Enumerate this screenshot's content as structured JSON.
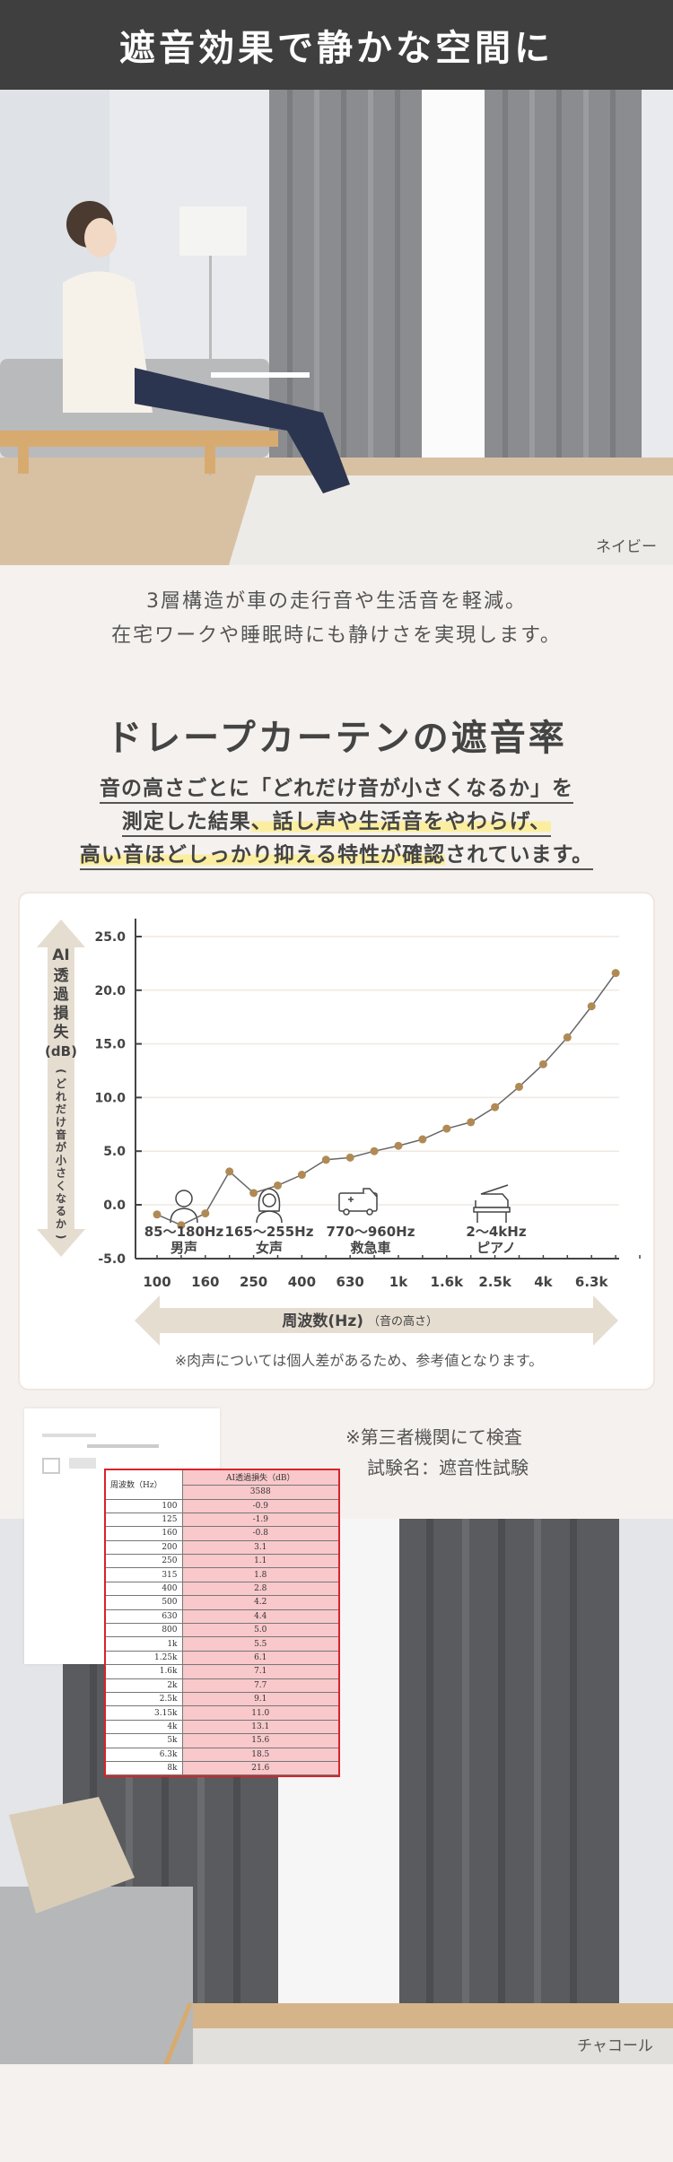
{
  "header": {
    "title": "遮音効果で静かな空間に"
  },
  "photo_top": {
    "label": "ネイビー"
  },
  "intro": {
    "line1": "3層構造が車の走行音や生活音を軽減。",
    "line2": "在宅ワークや睡眠時にも静けさを実現します。"
  },
  "section": {
    "title": "ドレープカーテンの遮音率",
    "sub1": "音の高さごとに「どれだけ音が小さくなるか」を",
    "sub2a": "測定した結果",
    "sub2b": "、話し声や生活音をやわらげ、",
    "sub3a": "高い音ほどしっかり抑える特性が確認",
    "sub3b": "されています。"
  },
  "chart_data": {
    "type": "line",
    "title": "ドレープカーテンの遮音率",
    "ylabel": "AI透過損失(dB)（どれだけ音が小さくなるか）",
    "ylabel_main": "AI透過損失(dB)",
    "ylabel_sub": "（どれだけ音が小さくなるか）",
    "xlabel": "周波数(Hz)",
    "xlabel_sub": "（音の高さ）",
    "ylim": [
      -5,
      25
    ],
    "yticks": [
      "25.0",
      "20.0",
      "15.0",
      "10.0",
      "5.0",
      "0.0",
      "-5.0"
    ],
    "x_tick_labels": [
      "100",
      "160",
      "250",
      "400",
      "630",
      "1k",
      "1.6k",
      "2.5k",
      "4k",
      "6.3k"
    ],
    "x": [
      "100",
      "125",
      "160",
      "200",
      "250",
      "315",
      "400",
      "500",
      "630",
      "800",
      "1k",
      "1.25k",
      "1.6k",
      "2k",
      "2.5k",
      "3.15k",
      "4k",
      "5k",
      "6.3k",
      "8k"
    ],
    "series": [
      {
        "name": "AI透過損失(dB) 3588",
        "values": [
          -0.9,
          -1.9,
          -0.8,
          3.1,
          1.1,
          1.8,
          2.8,
          4.2,
          4.4,
          5.0,
          5.5,
          6.1,
          7.1,
          7.7,
          9.1,
          11.0,
          13.1,
          15.6,
          18.5,
          21.6
        ]
      }
    ],
    "grid": true,
    "annotations": [
      {
        "range": "85〜180Hz",
        "label": "男声",
        "icon": "man-icon"
      },
      {
        "range": "165〜255Hz",
        "label": "女声",
        "icon": "woman-icon"
      },
      {
        "range": "770〜960Hz",
        "label": "救急車",
        "icon": "ambulance-icon"
      },
      {
        "range": "2〜4kHz",
        "label": "ピアノ",
        "icon": "piano-icon"
      }
    ],
    "colors": {
      "line": "#666666",
      "marker": "#b08a55",
      "arrow": "#e6ddd1",
      "grid": "#efe9e2"
    }
  },
  "chart_note": "※肉声については個人差があるため、参考値となります。",
  "test": {
    "line1": "※第三者機関にて検査",
    "line2": "試験名：遮音性試験"
  },
  "table": {
    "header_freq": "周波数（Hz）",
    "header_value": "AI透過損失（dB）",
    "sample": "3588",
    "rows": [
      {
        "f": "100",
        "v": "-0.9"
      },
      {
        "f": "125",
        "v": "-1.9"
      },
      {
        "f": "160",
        "v": "-0.8"
      },
      {
        "f": "200",
        "v": "3.1"
      },
      {
        "f": "250",
        "v": "1.1"
      },
      {
        "f": "315",
        "v": "1.8"
      },
      {
        "f": "400",
        "v": "2.8"
      },
      {
        "f": "500",
        "v": "4.2"
      },
      {
        "f": "630",
        "v": "4.4"
      },
      {
        "f": "800",
        "v": "5.0"
      },
      {
        "f": "1k",
        "v": "5.5"
      },
      {
        "f": "1.25k",
        "v": "6.1"
      },
      {
        "f": "1.6k",
        "v": "7.1"
      },
      {
        "f": "2k",
        "v": "7.7"
      },
      {
        "f": "2.5k",
        "v": "9.1"
      },
      {
        "f": "3.15k",
        "v": "11.0"
      },
      {
        "f": "4k",
        "v": "13.1"
      },
      {
        "f": "5k",
        "v": "15.6"
      },
      {
        "f": "6.3k",
        "v": "18.5"
      },
      {
        "f": "8k",
        "v": "21.6"
      }
    ]
  },
  "photo_bottom": {
    "label": "チャコール"
  }
}
